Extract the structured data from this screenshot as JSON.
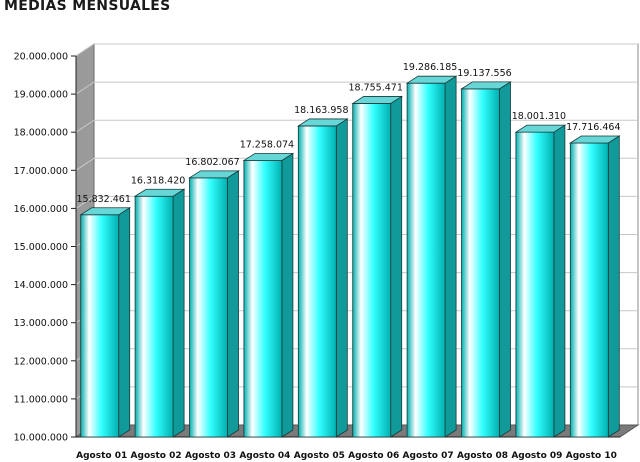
{
  "chart_data": {
    "type": "bar",
    "title": "MEDIAS MENSUALES",
    "xlabel": "",
    "ylabel": "",
    "categories": [
      "Agosto 01",
      "Agosto 02",
      "Agosto 03",
      "Agosto 04",
      "Agosto 05",
      "Agosto 06",
      "Agosto 07",
      "Agosto 08",
      "Agosto 09",
      "Agosto 10"
    ],
    "values": [
      15832461,
      16318420,
      16802067,
      17258074,
      18163958,
      18755471,
      19286185,
      19137556,
      18001310,
      17716464
    ],
    "value_labels": [
      "15.832.461",
      "16.318.420",
      "16.802.067",
      "17.258.074",
      "18.163.958",
      "18.755.471",
      "19.286.185",
      "19.137.556",
      "18.001.310",
      "17.716.464"
    ],
    "ylim": [
      10000000,
      20000000
    ],
    "yticks": [
      10000000,
      11000000,
      12000000,
      13000000,
      14000000,
      15000000,
      16000000,
      17000000,
      18000000,
      19000000,
      20000000
    ],
    "ytick_labels": [
      "10.000.000",
      "11.000.000",
      "12.000.000",
      "13.000.000",
      "14.000.000",
      "15.000.000",
      "16.000.000",
      "17.000.000",
      "18.000.000",
      "19.000.000",
      "20.000.000"
    ],
    "grid": true,
    "legend": "none",
    "style": "3d-cylinder-bars",
    "colors": {
      "bar_front_light": "#ffffff",
      "bar_front": "#33ffff",
      "bar_front_dark": "#00b0b0",
      "bar_side": "#119a9a",
      "bar_top": "#66d6d6",
      "bar_outline": "#1a3a3a",
      "wall": "#ffffff",
      "side_wall": "#9a9a9a",
      "floor": "#7a7a7a",
      "grid": "#c8c8c8"
    }
  }
}
